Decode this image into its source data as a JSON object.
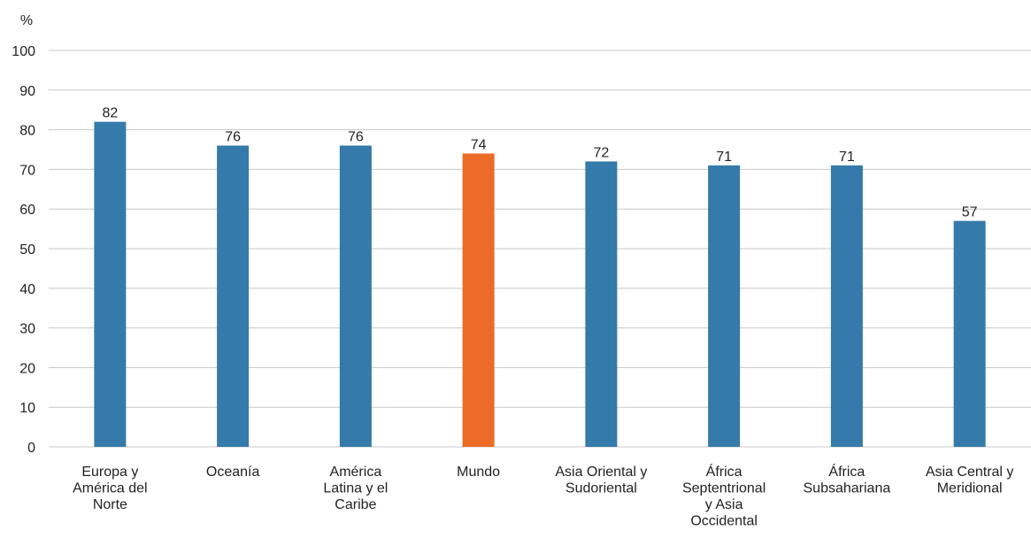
{
  "chart_data": {
    "type": "bar",
    "unit_label": "%",
    "categories": [
      [
        "Europa y",
        "América del",
        "Norte"
      ],
      [
        "Oceanía"
      ],
      [
        "América",
        "Latina y el",
        "Caribe"
      ],
      [
        "Mundo"
      ],
      [
        "Asia Oriental y",
        "Sudoriental"
      ],
      [
        "África",
        "Septentrional",
        "y Asia",
        "Occidental"
      ],
      [
        "África",
        "Subsahariana"
      ],
      [
        "Asia Central y",
        "Meridional"
      ]
    ],
    "values": [
      82,
      76,
      76,
      74,
      72,
      71,
      71,
      57
    ],
    "data_labels": [
      "82",
      "76",
      "76",
      "74",
      "72",
      "71",
      "71",
      "57"
    ],
    "highlight_index": 3,
    "ylim": [
      0,
      100
    ],
    "yticks": [
      0,
      10,
      20,
      30,
      40,
      50,
      60,
      70,
      80,
      90,
      100
    ],
    "grid": true,
    "legend": "none",
    "colors": {
      "bar": "#347aaa",
      "highlight": "#ec6b26",
      "grid": "#c8c8c8",
      "text": "#222222"
    }
  }
}
